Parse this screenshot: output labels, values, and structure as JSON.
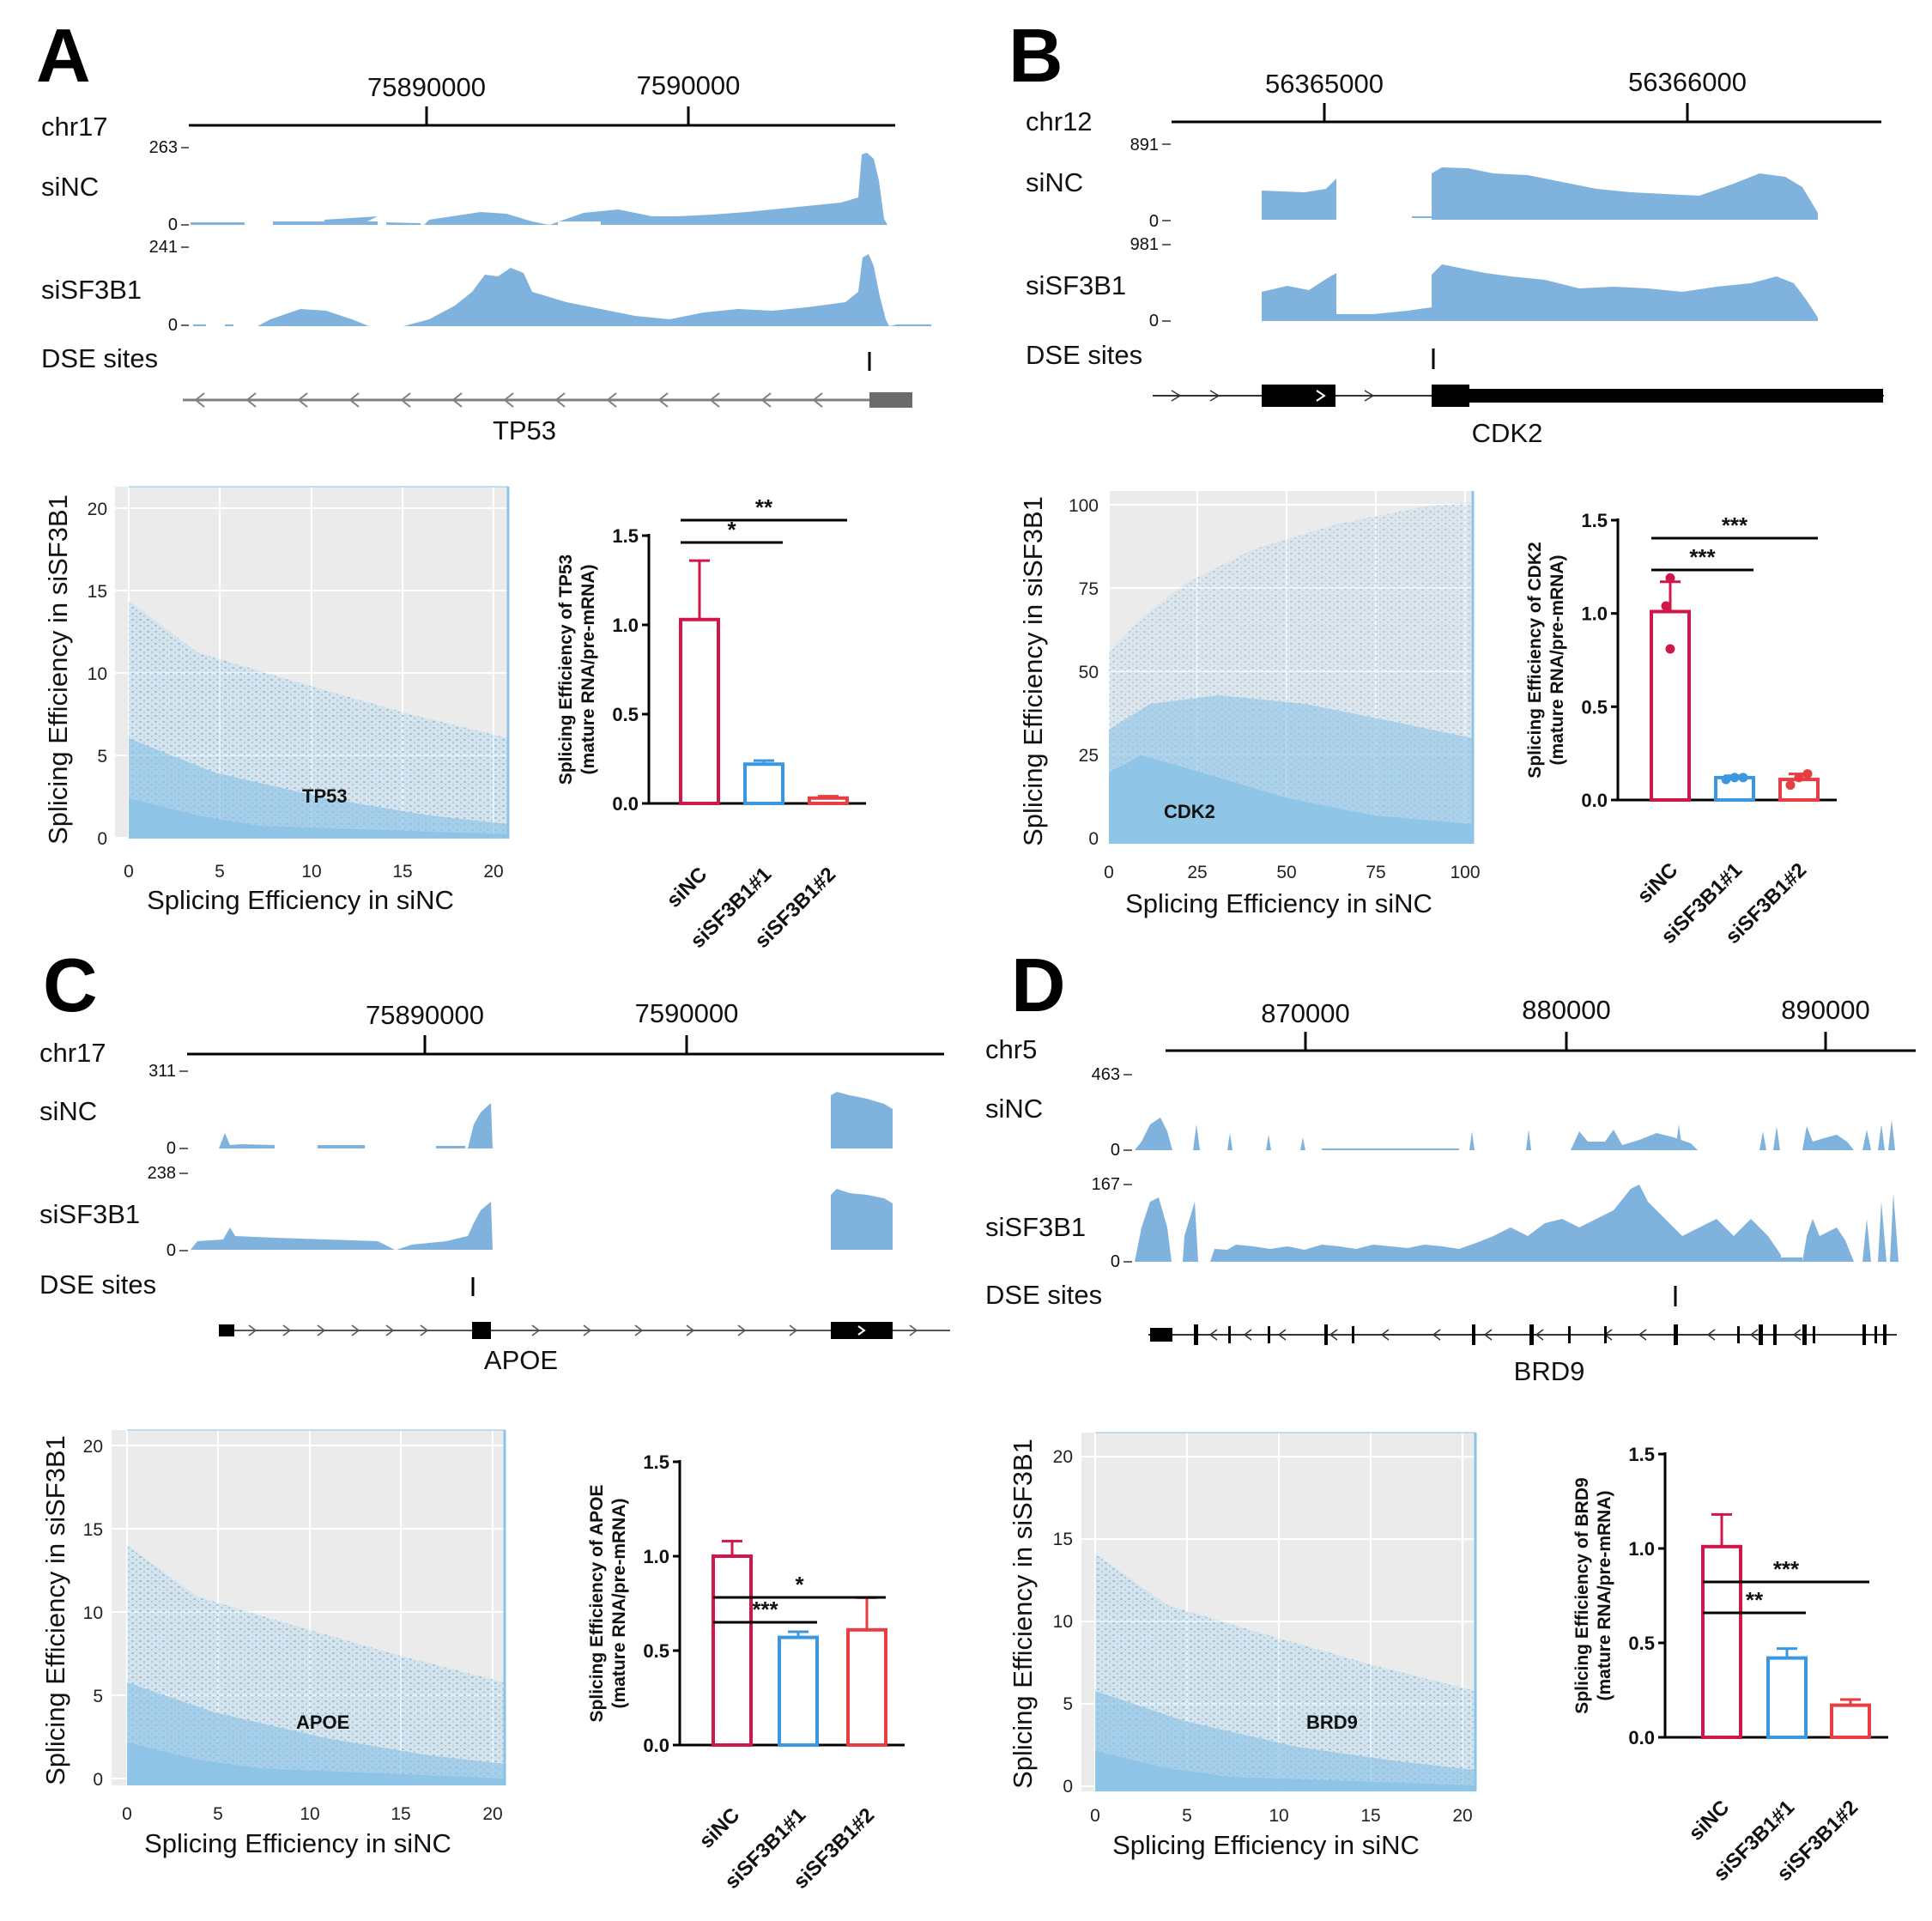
{
  "colors": {
    "coverage": "#7fb2dd",
    "scatter_point": "#8cc3e6",
    "scatter_bg": "#ebebeb",
    "bar_siNC": "#d0174a",
    "bar_siSF3B1_1": "#3b98e0",
    "bar_siSF3B1_2": "#e63e42",
    "gene_model_gray": "#808080"
  },
  "panels": [
    {
      "letter": "A",
      "gene": "TP53",
      "chrom": "chr17",
      "tracks": [
        {
          "name": "siNC",
          "max": "263",
          "min": "0"
        },
        {
          "name": "siSF3B1",
          "max": "241",
          "min": "0"
        }
      ],
      "coord_ticks": [
        "75890000",
        "7590000"
      ],
      "dse_label": "DSE sites",
      "scatter": {
        "xlabel": "Splicing Efficiency in siNC",
        "ylabel": "Splicing Efficiency in siSF3B1",
        "ticks": [
          "0",
          "5",
          "10",
          "15",
          "20"
        ],
        "max": 20,
        "highlight": "TP53"
      }
    },
    {
      "letter": "B",
      "gene": "CDK2",
      "chrom": "chr12",
      "tracks": [
        {
          "name": "siNC",
          "max": "891",
          "min": "0"
        },
        {
          "name": "siSF3B1",
          "max": "981",
          "min": "0"
        }
      ],
      "coord_ticks": [
        "56365000",
        "56366000"
      ],
      "dse_label": "DSE sites",
      "scatter": {
        "xlabel": "Splicing Efficiency in siNC",
        "ylabel": "Splicing Efficiency in siSF3B1",
        "ticks": [
          "0",
          "25",
          "50",
          "75",
          "100"
        ],
        "max": 100,
        "highlight": "CDK2"
      }
    },
    {
      "letter": "C",
      "gene": "APOE",
      "chrom": "chr17",
      "tracks": [
        {
          "name": "siNC",
          "max": "311",
          "min": "0"
        },
        {
          "name": "siSF3B1",
          "max": "238",
          "min": "0"
        }
      ],
      "coord_ticks": [
        "75890000",
        "7590000"
      ],
      "dse_label": "DSE sites",
      "scatter": {
        "xlabel": "Splicing Efficiency in siNC",
        "ylabel": "Splicing Efficiency in siSF3B1",
        "ticks": [
          "0",
          "5",
          "10",
          "15",
          "20"
        ],
        "max": 20,
        "highlight": "APOE"
      }
    },
    {
      "letter": "D",
      "gene": "BRD9",
      "chrom": "chr5",
      "tracks": [
        {
          "name": "siNC",
          "max": "463",
          "min": "0"
        },
        {
          "name": "siSF3B1",
          "max": "167",
          "min": "0"
        }
      ],
      "coord_ticks": [
        "870000",
        "880000",
        "890000"
      ],
      "dse_label": "DSE sites",
      "scatter": {
        "xlabel": "Splicing Efficiency in siNC",
        "ylabel": "Splicing Efficiency in siSF3B1",
        "ticks": [
          "0",
          "5",
          "10",
          "15",
          "20"
        ],
        "max": 20,
        "highlight": "BRD9"
      }
    }
  ],
  "chart_data": [
    {
      "type": "bar",
      "panel": "A",
      "ylabel_line1": "Splicing Efficiency of TP53",
      "ylabel_line2": "(mature RNA/pre-mRNA)",
      "categories": [
        "siNC",
        "siSF3B1#1",
        "siSF3B1#2"
      ],
      "values": [
        1.03,
        0.22,
        0.03
      ],
      "errors": [
        0.33,
        0.02,
        0.01
      ],
      "ylim": [
        0,
        1.5
      ],
      "yticks": [
        "0.0",
        "0.5",
        "1.0",
        "1.5"
      ],
      "significance": [
        {
          "from": "siNC",
          "to": "siSF3B1#1",
          "label": "*"
        },
        {
          "from": "siNC",
          "to": "siSF3B1#2",
          "label": "**"
        }
      ]
    },
    {
      "type": "bar",
      "panel": "B",
      "ylabel_line1": "Splicing Efficiency of CDK2",
      "ylabel_line2": "(mature RNA/pre-mRNA)",
      "categories": [
        "siNC",
        "siSF3B1#1",
        "siSF3B1#2"
      ],
      "values": [
        1.01,
        0.12,
        0.11
      ],
      "errors": [
        0.16,
        0.01,
        0.03
      ],
      "points": [
        [
          1.19,
          1.04,
          0.81
        ],
        [
          0.11,
          0.12,
          0.12
        ],
        [
          0.08,
          0.12,
          0.14
        ]
      ],
      "ylim": [
        0,
        1.5
      ],
      "yticks": [
        "0.0",
        "0.5",
        "1.0",
        "1.5"
      ],
      "significance": [
        {
          "from": "siNC",
          "to": "siSF3B1#1",
          "label": "***"
        },
        {
          "from": "siNC",
          "to": "siSF3B1#2",
          "label": "***"
        }
      ]
    },
    {
      "type": "bar",
      "panel": "C",
      "ylabel_line1": "Splicing Efficiency of APOE",
      "ylabel_line2": "(mature RNA/pre-mRNA)",
      "categories": [
        "siNC",
        "siSF3B1#1",
        "siSF3B1#2"
      ],
      "values": [
        1.0,
        0.57,
        0.61
      ],
      "errors": [
        0.08,
        0.03,
        0.17
      ],
      "ylim": [
        0,
        1.5
      ],
      "yticks": [
        "0.0",
        "0.5",
        "1.0",
        "1.5"
      ],
      "significance": [
        {
          "from": "siNC",
          "to": "siSF3B1#1",
          "label": "***"
        },
        {
          "from": "siNC",
          "to": "siSF3B1#2",
          "label": "*"
        }
      ]
    },
    {
      "type": "bar",
      "panel": "D",
      "ylabel_line1": "Splicing Efficiency of BRD9",
      "ylabel_line2": "(mature RNA/pre-mRNA)",
      "categories": [
        "siNC",
        "siSF3B1#1",
        "siSF3B1#2"
      ],
      "values": [
        1.01,
        0.42,
        0.17
      ],
      "errors": [
        0.17,
        0.05,
        0.03
      ],
      "ylim": [
        0,
        1.5
      ],
      "yticks": [
        "0.0",
        "0.5",
        "1.0",
        "1.5"
      ],
      "significance": [
        {
          "from": "siNC",
          "to": "siSF3B1#1",
          "label": "**"
        },
        {
          "from": "siNC",
          "to": "siSF3B1#2",
          "label": "***"
        }
      ]
    }
  ]
}
